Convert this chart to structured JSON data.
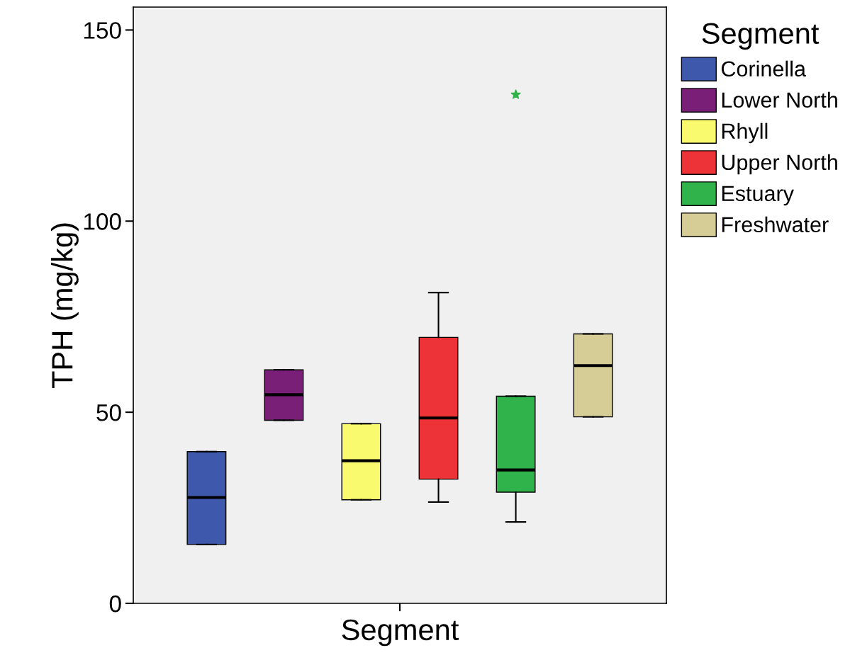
{
  "chart_data": {
    "type": "box",
    "xlabel": "Segment",
    "ylabel": "TPH (mg/kg)",
    "legend_title": "Segment",
    "categories": [
      null
    ],
    "ylim": [
      0,
      156
    ],
    "yticks": [
      0,
      50,
      100,
      150
    ],
    "grid": false,
    "legend": "right",
    "marker": "star",
    "series": [
      {
        "name": "Corinella",
        "color": "#3e58ac",
        "boxes": [
          {
            "low": 15.4,
            "q1": 15.4,
            "median": 27.7,
            "q3": 39.7,
            "high": 39.7
          }
        ]
      },
      {
        "name": "Lower North",
        "color": "#7a1f78",
        "boxes": [
          {
            "low": 47.9,
            "q1": 47.9,
            "median": 54.6,
            "q3": 61.1,
            "high": 61.1
          }
        ]
      },
      {
        "name": "Rhyll",
        "color": "#fafa6e",
        "boxes": [
          {
            "low": 27.1,
            "q1": 27.1,
            "median": 37.3,
            "q3": 47.0,
            "high": 47.0
          }
        ]
      },
      {
        "name": "Upper North",
        "color": "#ee3338",
        "boxes": [
          {
            "low": 26.5,
            "q1": 32.5,
            "median": 48.5,
            "q3": 69.6,
            "high": 81.3
          }
        ]
      },
      {
        "name": "Estuary",
        "color": "#2fb34a",
        "boxes": [
          {
            "low": 21.3,
            "q1": 29.1,
            "median": 34.9,
            "q3": 54.2,
            "high": 54.2,
            "outliers": [
              133.1
            ]
          }
        ]
      },
      {
        "name": "Freshwater",
        "color": "#d6cd96",
        "boxes": [
          {
            "low": 48.8,
            "q1": 48.8,
            "median": 62.2,
            "q3": 70.5,
            "high": 70.5
          }
        ]
      }
    ]
  }
}
